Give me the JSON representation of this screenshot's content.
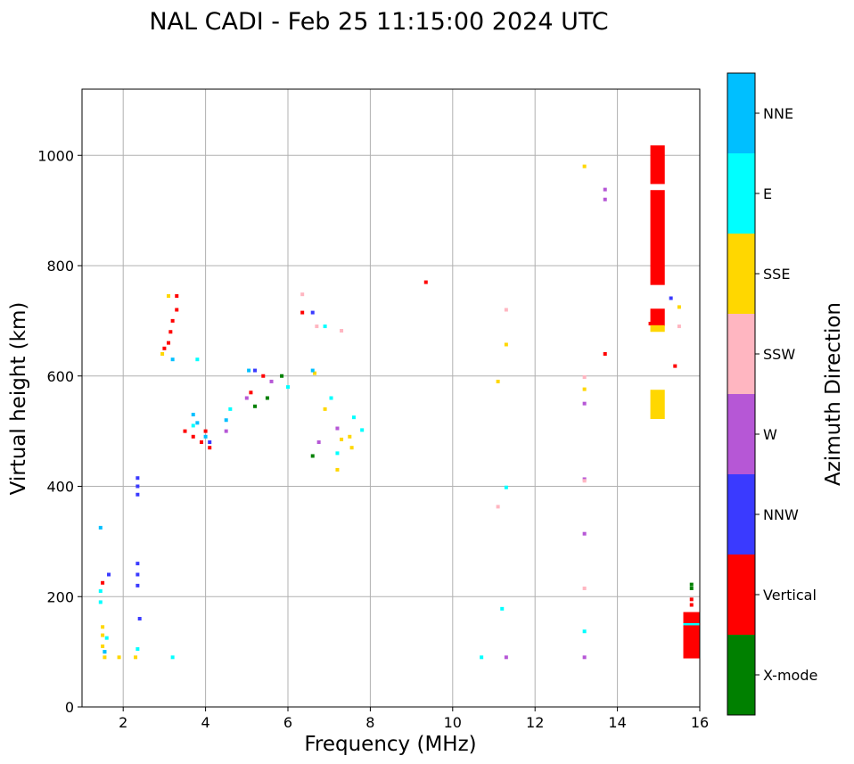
{
  "chart_data": {
    "type": "scatter",
    "title": "NAL CADI - Feb 25 11:15:00 2024 UTC",
    "xlabel": "Frequency (MHz)",
    "ylabel": "Virtual height (km)",
    "xlim": [
      1,
      16
    ],
    "ylim": [
      0,
      1120
    ],
    "grid": true,
    "xticks": [
      2,
      4,
      6,
      8,
      10,
      12,
      14,
      16
    ],
    "yticks": [
      0,
      200,
      400,
      600,
      800,
      1000
    ],
    "colorbar": {
      "label": "Azimuth Direction",
      "categories": [
        {
          "name": "X-mode",
          "color": "#008000"
        },
        {
          "name": "Vertical",
          "color": "#ff0000"
        },
        {
          "name": "NNW",
          "color": "#3a3aff"
        },
        {
          "name": "W",
          "color": "#b657d6"
        },
        {
          "name": "SSW",
          "color": "#ffb6c1"
        },
        {
          "name": "SSE",
          "color": "#ffd700"
        },
        {
          "name": "E",
          "color": "#00ffff"
        },
        {
          "name": "NNE",
          "color": "#00bfff"
        }
      ]
    },
    "series": [
      {
        "name": "X-mode",
        "points": [
          [
            5.2,
            545
          ],
          [
            5.5,
            560
          ],
          [
            5.85,
            600
          ],
          [
            6.6,
            455
          ],
          [
            15.8,
            222
          ],
          [
            15.8,
            215
          ]
        ]
      },
      {
        "name": "Vertical",
        "points": [
          [
            1.5,
            225
          ],
          [
            3.0,
            650
          ],
          [
            3.1,
            660
          ],
          [
            3.15,
            680
          ],
          [
            3.2,
            700
          ],
          [
            3.3,
            720
          ],
          [
            3.3,
            745
          ],
          [
            3.9,
            480
          ],
          [
            4.0,
            500
          ],
          [
            4.1,
            470
          ],
          [
            3.7,
            490
          ],
          [
            3.5,
            500
          ],
          [
            5.1,
            570
          ],
          [
            5.4,
            600
          ],
          [
            6.35,
            715
          ],
          [
            9.35,
            770
          ],
          [
            13.7,
            640
          ],
          [
            14.8,
            695
          ],
          [
            15.4,
            618
          ],
          [
            15.8,
            195
          ],
          [
            15.8,
            185
          ]
        ]
      },
      {
        "name": "NNW",
        "points": [
          [
            1.65,
            240
          ],
          [
            2.35,
            415
          ],
          [
            2.35,
            400
          ],
          [
            2.35,
            385
          ],
          [
            2.35,
            260
          ],
          [
            2.35,
            240
          ],
          [
            2.35,
            220
          ],
          [
            2.4,
            160
          ],
          [
            4.1,
            480
          ],
          [
            5.2,
            610
          ],
          [
            6.6,
            715
          ],
          [
            15.3,
            741
          ]
        ]
      },
      {
        "name": "W",
        "points": [
          [
            4.5,
            500
          ],
          [
            5.0,
            560
          ],
          [
            5.6,
            590
          ],
          [
            6.75,
            480
          ],
          [
            7.2,
            505
          ],
          [
            11.3,
            90
          ],
          [
            13.2,
            550
          ],
          [
            13.2,
            413
          ],
          [
            13.2,
            314
          ],
          [
            13.2,
            90
          ],
          [
            13.7,
            938
          ],
          [
            13.7,
            920
          ]
        ]
      },
      {
        "name": "SSW",
        "points": [
          [
            6.35,
            748
          ],
          [
            6.7,
            690
          ],
          [
            7.3,
            682
          ],
          [
            11.1,
            363
          ],
          [
            11.3,
            720
          ],
          [
            13.2,
            598
          ],
          [
            13.2,
            410
          ],
          [
            13.2,
            215
          ],
          [
            15.5,
            690
          ]
        ]
      },
      {
        "name": "SSE",
        "points": [
          [
            1.5,
            145
          ],
          [
            1.5,
            130
          ],
          [
            1.5,
            110
          ],
          [
            1.55,
            90
          ],
          [
            1.9,
            90
          ],
          [
            2.3,
            90
          ],
          [
            2.95,
            640
          ],
          [
            3.1,
            745
          ],
          [
            6.65,
            605
          ],
          [
            6.9,
            540
          ],
          [
            7.2,
            430
          ],
          [
            7.3,
            485
          ],
          [
            7.5,
            490
          ],
          [
            7.55,
            470
          ],
          [
            11.1,
            590
          ],
          [
            11.3,
            657
          ],
          [
            13.2,
            980
          ],
          [
            13.2,
            576
          ],
          [
            15.5,
            725
          ]
        ]
      },
      {
        "name": "E",
        "points": [
          [
            1.45,
            210
          ],
          [
            1.45,
            190
          ],
          [
            1.55,
            100
          ],
          [
            1.6,
            125
          ],
          [
            2.35,
            105
          ],
          [
            3.2,
            90
          ],
          [
            3.8,
            630
          ],
          [
            3.7,
            510
          ],
          [
            4.6,
            540
          ],
          [
            6.0,
            580
          ],
          [
            6.9,
            690
          ],
          [
            7.05,
            560
          ],
          [
            7.2,
            460
          ],
          [
            7.6,
            525
          ],
          [
            7.8,
            502
          ],
          [
            10.7,
            90
          ],
          [
            11.2,
            178
          ],
          [
            11.3,
            398
          ],
          [
            13.2,
            137
          ]
        ]
      },
      {
        "name": "NNE",
        "points": [
          [
            1.45,
            325
          ],
          [
            1.55,
            100
          ],
          [
            3.2,
            630
          ],
          [
            3.7,
            530
          ],
          [
            3.8,
            515
          ],
          [
            4.0,
            490
          ],
          [
            4.5,
            520
          ],
          [
            5.05,
            610
          ],
          [
            6.6,
            610
          ]
        ]
      }
    ],
    "wide_bars": [
      {
        "color_index": 1,
        "x": [
          14.8,
          15.15
        ],
        "y": [
          948,
          1018
        ]
      },
      {
        "color_index": 1,
        "x": [
          14.8,
          15.15
        ],
        "y": [
          765,
          937
        ]
      },
      {
        "color_index": 1,
        "x": [
          14.8,
          15.15
        ],
        "y": [
          690,
          722
        ]
      },
      {
        "color_index": 5,
        "x": [
          14.8,
          15.15
        ],
        "y": [
          680,
          692
        ]
      },
      {
        "color_index": 5,
        "x": [
          14.8,
          15.15
        ],
        "y": [
          522,
          575
        ]
      },
      {
        "color_index": 1,
        "x": [
          15.6,
          16.0
        ],
        "y": [
          88,
          172
        ]
      },
      {
        "color_index": 6,
        "x": [
          15.6,
          16.0
        ],
        "y": [
          148,
          152
        ]
      }
    ]
  }
}
